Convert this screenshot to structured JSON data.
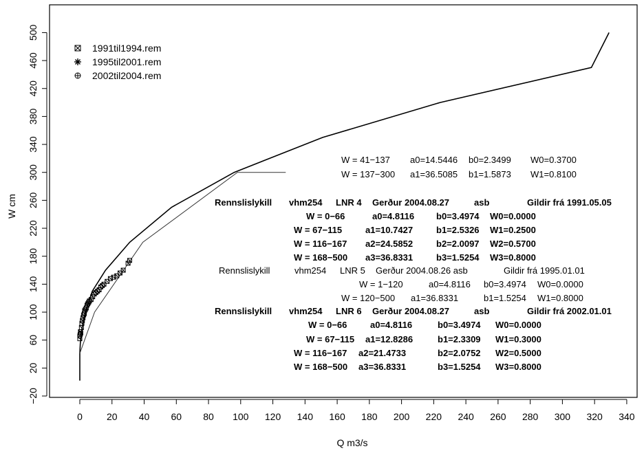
{
  "chart_data": {
    "type": "line",
    "xlabel": "Q m3/s",
    "ylabel": "W cm",
    "xlim": [
      -10,
      340
    ],
    "ylim": [
      -20,
      520
    ],
    "x_ticks": [
      0,
      20,
      40,
      60,
      80,
      100,
      120,
      140,
      160,
      180,
      200,
      220,
      240,
      260,
      280,
      300,
      320,
      340
    ],
    "y_ticks": [
      -20,
      20,
      60,
      100,
      140,
      180,
      220,
      260,
      300,
      340,
      380,
      420,
      460,
      500
    ],
    "grid": false,
    "legend_position": "top-left",
    "legend": [
      {
        "label": "1991til1994.rem",
        "marker": "boxed-x"
      },
      {
        "label": "1995til2001.rem",
        "marker": "asterisk"
      },
      {
        "label": "2002til2004.rem",
        "marker": "circle-plus"
      }
    ],
    "series": [
      {
        "points": [
          [
            0,
            2
          ],
          [
            0,
            41
          ],
          [
            0.3,
            55
          ],
          [
            1.2,
            75
          ],
          [
            3.4,
            100
          ],
          [
            7.8,
            130
          ],
          [
            16,
            160
          ],
          [
            31,
            200
          ],
          [
            57,
            250
          ],
          [
            96,
            300
          ],
          [
            151,
            350
          ],
          [
            224,
            400
          ],
          [
            318,
            450
          ],
          [
            329,
            500
          ]
        ]
      },
      {
        "points": [
          [
            0,
            41
          ],
          [
            9.2,
            100
          ],
          [
            39.2,
            200
          ],
          [
            98,
            300
          ],
          [
            128,
            300
          ]
        ]
      }
    ],
    "measurements": [
      [
        0,
        62
      ],
      [
        0,
        66
      ],
      [
        0.2,
        68
      ],
      [
        0.4,
        72
      ],
      [
        0.6,
        70
      ],
      [
        1,
        78
      ],
      [
        1.3,
        84
      ],
      [
        1.6,
        88
      ],
      [
        2,
        92
      ],
      [
        2.4,
        96
      ],
      [
        2.8,
        98
      ],
      [
        3,
        102
      ],
      [
        3.5,
        104
      ],
      [
        4,
        106
      ],
      [
        4.5,
        110
      ],
      [
        5,
        112
      ],
      [
        5.5,
        114
      ],
      [
        6,
        116
      ],
      [
        7,
        118
      ],
      [
        8,
        122
      ],
      [
        9,
        126
      ],
      [
        10,
        128
      ],
      [
        11,
        130
      ],
      [
        12,
        132
      ],
      [
        13,
        136
      ],
      [
        14,
        138
      ],
      [
        15,
        140
      ],
      [
        17,
        144
      ],
      [
        19,
        148
      ],
      [
        21,
        150
      ],
      [
        23,
        152
      ],
      [
        25,
        156
      ],
      [
        27,
        160
      ],
      [
        30,
        170
      ],
      [
        31,
        174
      ]
    ],
    "annotations": [
      {
        "text": "W = 41−137",
        "bold": false
      },
      {
        "text": "a0=14.5446",
        "bold": false
      },
      {
        "text": "b0=2.3499",
        "bold": false
      },
      {
        "text": "W0=0.3700",
        "bold": false
      },
      {
        "text": "W = 137−300",
        "bold": false
      },
      {
        "text": "a1=36.5085",
        "bold": false
      },
      {
        "text": "b1=1.5873",
        "bold": false
      },
      {
        "text": "W1=0.8100",
        "bold": false
      },
      {
        "text": "Rennslislykill",
        "bold": true
      },
      {
        "text": "vhm254",
        "bold": true
      },
      {
        "text": "LNR 4",
        "bold": true
      },
      {
        "text": "Gerður 2004.08.27",
        "bold": true
      },
      {
        "text": "asb",
        "bold": true
      },
      {
        "text": "Gildir frá 1991.05.05",
        "bold": true
      },
      {
        "text": "W = 0−66",
        "bold": true
      },
      {
        "text": "a0=4.8116",
        "bold": true
      },
      {
        "text": "b0=3.4974",
        "bold": true
      },
      {
        "text": "W0=0.0000",
        "bold": true
      },
      {
        "text": "W = 67−115",
        "bold": true
      },
      {
        "text": "a1=10.7427",
        "bold": true
      },
      {
        "text": "b1=2.5326",
        "bold": true
      },
      {
        "text": "W1=0.2500",
        "bold": true
      },
      {
        "text": "W = 116−167",
        "bold": true
      },
      {
        "text": "a2=24.5852",
        "bold": true
      },
      {
        "text": "b2=2.0097",
        "bold": true
      },
      {
        "text": "W2=0.5700",
        "bold": true
      },
      {
        "text": "W = 168−500",
        "bold": true
      },
      {
        "text": "a3=36.8331",
        "bold": true
      },
      {
        "text": "b3=1.5254",
        "bold": true
      },
      {
        "text": "W3=0.8000",
        "bold": true
      },
      {
        "text": "Rennslislykill",
        "bold": false
      },
      {
        "text": "vhm254",
        "bold": false
      },
      {
        "text": "LNR 5",
        "bold": false
      },
      {
        "text": "Gerður 2004.08.26 asb",
        "bold": false
      },
      {
        "text": "Gildir frá 1995.01.01",
        "bold": false
      },
      {
        "text": "W = 1−120",
        "bold": false
      },
      {
        "text": "a0=4.8116",
        "bold": false
      },
      {
        "text": "b0=3.4974",
        "bold": false
      },
      {
        "text": "W0=0.0000",
        "bold": false
      },
      {
        "text": "W = 120−500",
        "bold": false
      },
      {
        "text": "a1=36.8331",
        "bold": false
      },
      {
        "text": "b1=1.5254",
        "bold": false
      },
      {
        "text": "W1=0.8000",
        "bold": false
      },
      {
        "text": "Rennslislykill",
        "bold": true
      },
      {
        "text": "vhm254",
        "bold": true
      },
      {
        "text": "LNR 6",
        "bold": true
      },
      {
        "text": "Gerður 2004.08.27",
        "bold": true
      },
      {
        "text": "asb",
        "bold": true
      },
      {
        "text": "Gildir frá 2002.01.01",
        "bold": true
      },
      {
        "text": "W = 0−66",
        "bold": true
      },
      {
        "text": "a0=4.8116",
        "bold": true
      },
      {
        "text": "b0=3.4974",
        "bold": true
      },
      {
        "text": "W0=0.0000",
        "bold": true
      },
      {
        "text": "W = 67−115",
        "bold": true
      },
      {
        "text": "a1=12.8286",
        "bold": true
      },
      {
        "text": "b1=2.3309",
        "bold": true
      },
      {
        "text": "W1=0.3000",
        "bold": true
      },
      {
        "text": "W = 116−167",
        "bold": true
      },
      {
        "text": "a2=21.4733",
        "bold": true
      },
      {
        "text": "b2=2.0752",
        "bold": true
      },
      {
        "text": "W2=0.5000",
        "bold": true
      },
      {
        "text": "W = 168−500",
        "bold": true
      },
      {
        "text": "a3=36.8331",
        "bold": true
      },
      {
        "text": "b3=1.5254",
        "bold": true
      },
      {
        "text": "W3=0.8000",
        "bold": true
      }
    ]
  }
}
